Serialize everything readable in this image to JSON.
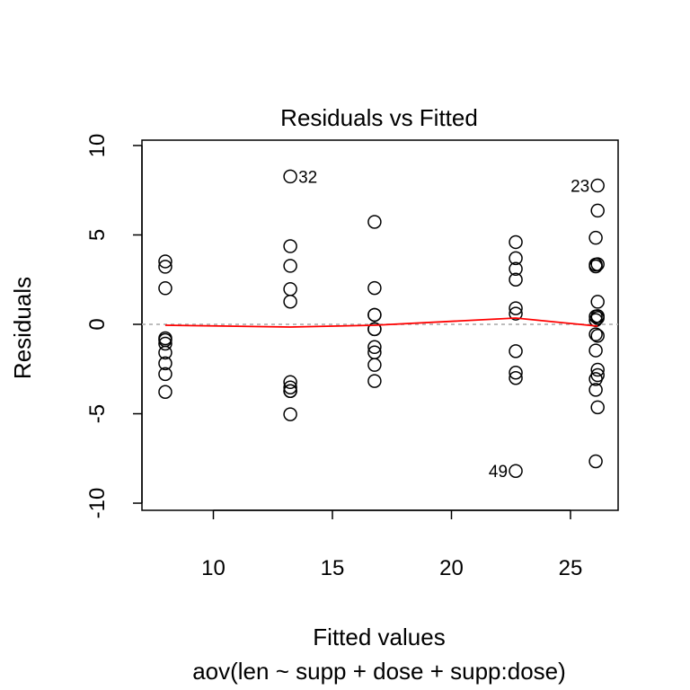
{
  "chart_data": {
    "type": "scatter",
    "title": "Residuals vs Fitted",
    "xlabel": "Fitted values",
    "ylabel": "Residuals",
    "subtitle": "aov(len ~ supp + dose + supp:dose)",
    "xlim": [
      7,
      27
    ],
    "ylim": [
      -10.4,
      10.3
    ],
    "xticks": [
      10,
      15,
      20,
      25
    ],
    "yticks": [
      -10,
      -5,
      0,
      5,
      10
    ],
    "xtick_labels": [
      "10",
      "15",
      "20",
      "25"
    ],
    "ytick_labels": [
      "-10",
      "-5",
      "0",
      "5",
      "10"
    ],
    "reference_line": {
      "y": 0,
      "style": "dotted",
      "color": "#b3b3b3"
    },
    "smooth_line": {
      "color": "#ff0000",
      "x": [
        7.98,
        13.23,
        16.77,
        22.7,
        26.14
      ],
      "y": [
        -0.05,
        -0.15,
        -0.05,
        0.35,
        -0.1
      ]
    },
    "points": {
      "x": [
        7.98,
        7.98,
        7.98,
        7.98,
        7.98,
        7.98,
        7.98,
        7.98,
        7.98,
        7.98,
        13.23,
        13.23,
        13.23,
        13.23,
        13.23,
        13.23,
        13.23,
        13.23,
        13.23,
        13.23,
        16.77,
        16.77,
        16.77,
        16.77,
        16.77,
        16.77,
        16.77,
        16.77,
        16.77,
        16.77,
        22.7,
        22.7,
        22.7,
        22.7,
        22.7,
        22.7,
        22.7,
        22.7,
        22.7,
        22.7,
        26.06,
        26.06,
        26.06,
        26.06,
        26.06,
        26.06,
        26.06,
        26.06,
        26.06,
        26.06,
        26.14,
        26.14,
        26.14,
        26.14,
        26.14,
        26.14,
        26.14,
        26.14,
        26.14,
        26.14
      ],
      "y": [
        3.52,
        3.22,
        2.02,
        -0.78,
        -1.08,
        -1.58,
        -2.18,
        -2.78,
        -3.78,
        -0.88,
        8.27,
        4.37,
        3.27,
        1.97,
        1.27,
        -3.23,
        -3.53,
        -3.73,
        -3.73,
        -5.03,
        5.73,
        2.03,
        0.53,
        0.53,
        -0.27,
        -0.27,
        -1.27,
        -1.57,
        -2.27,
        -3.17,
        4.6,
        3.7,
        3.1,
        2.5,
        0.9,
        0.6,
        -1.5,
        -2.7,
        -3.0,
        -8.2,
        3.34,
        0.44,
        -0.56,
        -1.46,
        -3.06,
        -3.66,
        -7.66,
        0.24,
        3.24,
        4.84,
        7.76,
        6.36,
        3.36,
        1.26,
        0.36,
        -0.64,
        -2.54,
        -2.84,
        -4.64,
        0.46
      ]
    },
    "point_labels": [
      {
        "text": "32",
        "x": 13.23,
        "y": 8.27,
        "side": "right"
      },
      {
        "text": "23",
        "x": 26.14,
        "y": 7.76,
        "side": "left"
      },
      {
        "text": "49",
        "x": 22.7,
        "y": -8.2,
        "side": "left"
      }
    ],
    "grid": false,
    "legend": "none"
  }
}
